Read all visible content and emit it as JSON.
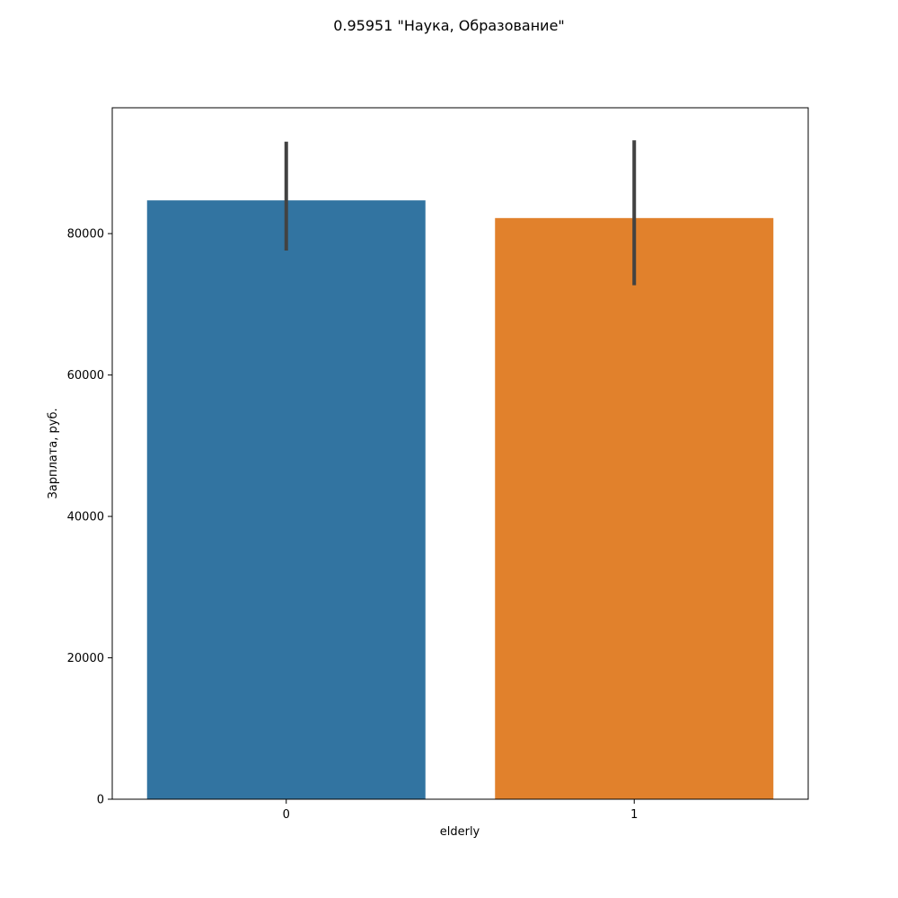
{
  "chart_data": {
    "type": "bar",
    "title": "0.95951 \"Наука, Образование\"",
    "xlabel": "elderly",
    "ylabel": "Зарплата, руб.",
    "categories": [
      "0",
      "1"
    ],
    "values": [
      84700,
      82200
    ],
    "error_bars": [
      {
        "low": 77600,
        "high": 93000
      },
      {
        "low": 72700,
        "high": 93200
      }
    ],
    "colors": [
      "#3274a1",
      "#e1812c"
    ],
    "error_color": "#424242",
    "ylim": [
      0,
      97800
    ],
    "yticks": [
      0,
      20000,
      40000,
      60000,
      80000
    ],
    "grid": false
  }
}
